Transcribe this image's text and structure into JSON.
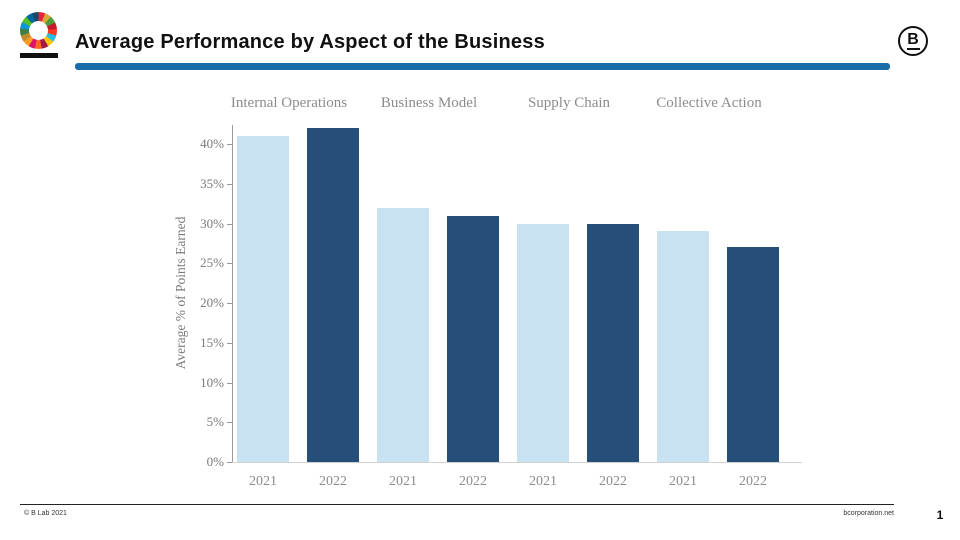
{
  "header": {
    "title": "Average Performance by Aspect of the Business",
    "b_logo_letter": "B",
    "accent_color": "#1a6da9"
  },
  "footer": {
    "left": "© B Lab 2021",
    "right": "bcorporation.net",
    "page_number": "1"
  },
  "chart_data": {
    "type": "bar",
    "title": "Average Performance by Aspect of the Business",
    "ylabel": "Average % of Points Earned",
    "ylim": [
      0,
      45
    ],
    "yticks": [
      0,
      5,
      10,
      15,
      20,
      25,
      30,
      35,
      40
    ],
    "ytick_suffix": "%",
    "grid": false,
    "groups": [
      "Internal Operations",
      "Business Model",
      "Supply Chain",
      "Collective Action"
    ],
    "categories": [
      "2021",
      "2022"
    ],
    "series": [
      {
        "name": "2021",
        "color": "#c9e2f2",
        "values": [
          41,
          32,
          30,
          29
        ]
      },
      {
        "name": "2022",
        "color": "#254f78",
        "values": [
          42,
          31,
          30,
          27
        ]
      }
    ]
  }
}
